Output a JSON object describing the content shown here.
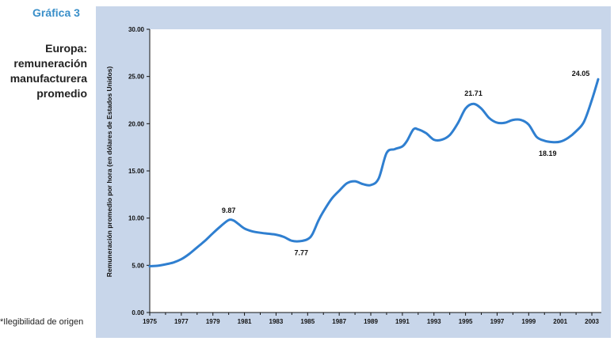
{
  "header": {
    "figure_number": "Gráfica 3",
    "title": "Europa: remuneración manufacturera promedio"
  },
  "footnote": "*Ilegibilidad de origen",
  "colors": {
    "panel_bg": "#c8d6ea",
    "plot_bg": "#ffffff",
    "line": "#2f7fd0",
    "accent": "#3a8fc9"
  },
  "chart_data": {
    "type": "line",
    "title": "",
    "xlabel": "",
    "ylabel": "Remuneración promedio por hora (en dólares de Estados Unidos)",
    "xlim": [
      1975,
      2003.6
    ],
    "ylim": [
      0,
      30
    ],
    "x_ticks": [
      1975,
      1977,
      1979,
      1981,
      1983,
      1985,
      1987,
      1989,
      1991,
      1993,
      1995,
      1997,
      1999,
      2001,
      2003
    ],
    "x_tick_labels": [
      "1975",
      "1977",
      "1979",
      "1981",
      "1983",
      "1985",
      "1987",
      "1989",
      "1991",
      "1993",
      "1995",
      "1997",
      "1999",
      "2001",
      "2003"
    ],
    "y_ticks": [
      0,
      5,
      10,
      15,
      20,
      25,
      30
    ],
    "y_tick_labels": [
      "0.00",
      "5.00",
      "10.00",
      "15.00",
      "20.00",
      "25.00",
      "30.00"
    ],
    "grid": false,
    "series": [
      {
        "name": "",
        "x": [
          1975,
          1975.5,
          1976,
          1976.5,
          1977,
          1977.5,
          1978,
          1978.5,
          1979,
          1979.5,
          1980,
          1980.3,
          1980.6,
          1981,
          1981.5,
          1982,
          1982.5,
          1983,
          1983.5,
          1984,
          1984.5,
          1985,
          1985.3,
          1985.7,
          1986,
          1986.5,
          1987,
          1987.5,
          1988,
          1988.5,
          1989,
          1989.5,
          1990,
          1990.5,
          1991,
          1991.3,
          1991.7,
          1992,
          1992.5,
          1993,
          1993.5,
          1994,
          1994.5,
          1995,
          1995.5,
          1996,
          1996.5,
          1997,
          1997.5,
          1998,
          1998.5,
          1999,
          1999.5,
          2000,
          2000.5,
          2001,
          2001.5,
          2002,
          2002.5,
          2003,
          2003.4
        ],
        "y": [
          4.9,
          4.95,
          5.1,
          5.3,
          5.65,
          6.2,
          6.9,
          7.6,
          8.4,
          9.15,
          9.8,
          9.75,
          9.4,
          8.9,
          8.6,
          8.45,
          8.35,
          8.25,
          8.0,
          7.6,
          7.55,
          7.77,
          8.3,
          9.8,
          10.7,
          12.0,
          12.9,
          13.7,
          13.9,
          13.6,
          13.5,
          14.2,
          16.9,
          17.3,
          17.6,
          18.2,
          19.4,
          19.4,
          19.0,
          18.3,
          18.3,
          18.8,
          20.0,
          21.6,
          22.1,
          21.6,
          20.6,
          20.1,
          20.1,
          20.4,
          20.4,
          19.9,
          18.6,
          18.19,
          18.05,
          18.1,
          18.5,
          19.2,
          20.2,
          22.5,
          24.7
        ]
      }
    ],
    "annotations": [
      {
        "text": "9.87",
        "x": 1980,
        "y": 9.87
      },
      {
        "text": "7.77",
        "x": 1985,
        "y": 7.77
      },
      {
        "text": "21.71",
        "x": 1995.5,
        "y": 21.71
      },
      {
        "text": "18.19",
        "x": 2000.2,
        "y": 18.19
      },
      {
        "text": "24.05",
        "x": 2002.9,
        "y": 24.05
      }
    ]
  }
}
